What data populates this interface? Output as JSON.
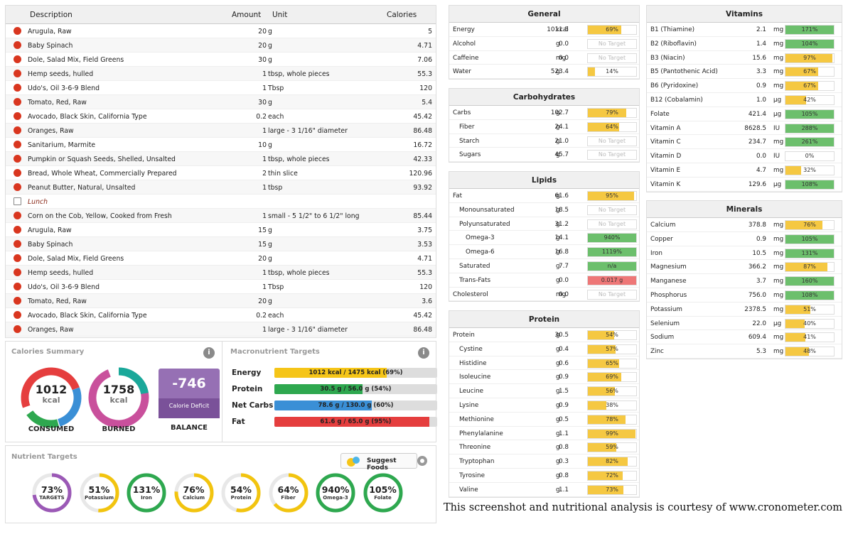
{
  "colors": {
    "yellow": "#f5c842",
    "green": "#6cbf6c",
    "red": "#ee7777",
    "purple": "#9670b4"
  },
  "diary": {
    "headers": {
      "desc": "Description",
      "amount": "Amount",
      "unit": "Unit",
      "calories": "Calories"
    },
    "rows": [
      {
        "icon": "apple-icon",
        "desc": "Arugula, Raw",
        "amount": "20",
        "unit": "g",
        "cal": "5"
      },
      {
        "icon": "apple-icon",
        "desc": "Baby Spinach",
        "amount": "20",
        "unit": "g",
        "cal": "4.71"
      },
      {
        "icon": "apple-icon",
        "desc": "Dole, Salad Mix, Field Greens",
        "amount": "30",
        "unit": "g",
        "cal": "7.06"
      },
      {
        "icon": "apple-icon",
        "desc": "Hemp seeds, hulled",
        "amount": "1",
        "unit": "tbsp, whole pieces",
        "cal": "55.3"
      },
      {
        "icon": "apple-icon",
        "desc": "Udo's, Oil 3-6-9 Blend",
        "amount": "1",
        "unit": "Tbsp",
        "cal": "120"
      },
      {
        "icon": "apple-icon",
        "desc": "Tomato, Red, Raw",
        "amount": "30",
        "unit": "g",
        "cal": "5.4"
      },
      {
        "icon": "apple-icon",
        "desc": "Avocado, Black Skin, California Type",
        "amount": "0.2",
        "unit": "each",
        "cal": "45.42"
      },
      {
        "icon": "apple-icon",
        "desc": "Oranges, Raw",
        "amount": "1",
        "unit": "large - 3 1/16\" diameter",
        "cal": "86.48"
      },
      {
        "icon": "apple-icon",
        "desc": "Sanitarium, Marmite",
        "amount": "10",
        "unit": "g",
        "cal": "16.72"
      },
      {
        "icon": "apple-icon",
        "desc": "Pumpkin or Squash Seeds, Shelled, Unsalted",
        "amount": "1",
        "unit": "tbsp, whole pieces",
        "cal": "42.33"
      },
      {
        "icon": "apple-icon",
        "desc": "Bread, Whole Wheat, Commercially Prepared",
        "amount": "2",
        "unit": "thin slice",
        "cal": "120.96"
      },
      {
        "icon": "apple-icon",
        "desc": "Peanut Butter, Natural, Unsalted",
        "amount": "1",
        "unit": "tbsp",
        "cal": "93.92"
      },
      {
        "icon": "note-icon",
        "desc": "Lunch",
        "amount": "",
        "unit": "",
        "cal": "",
        "note": true
      },
      {
        "icon": "apple-icon",
        "desc": "Corn on the Cob, Yellow, Cooked from Fresh",
        "amount": "1",
        "unit": "small - 5 1/2\" to 6 1/2\" long",
        "cal": "85.44"
      },
      {
        "icon": "apple-icon",
        "desc": "Arugula, Raw",
        "amount": "15",
        "unit": "g",
        "cal": "3.75"
      },
      {
        "icon": "apple-icon",
        "desc": "Baby Spinach",
        "amount": "15",
        "unit": "g",
        "cal": "3.53"
      },
      {
        "icon": "apple-icon",
        "desc": "Dole, Salad Mix, Field Greens",
        "amount": "20",
        "unit": "g",
        "cal": "4.71"
      },
      {
        "icon": "apple-icon",
        "desc": "Hemp seeds, hulled",
        "amount": "1",
        "unit": "tbsp, whole pieces",
        "cal": "55.3"
      },
      {
        "icon": "apple-icon",
        "desc": "Udo's, Oil 3-6-9 Blend",
        "amount": "1",
        "unit": "Tbsp",
        "cal": "120"
      },
      {
        "icon": "apple-icon",
        "desc": "Tomato, Red, Raw",
        "amount": "20",
        "unit": "g",
        "cal": "3.6"
      },
      {
        "icon": "apple-icon",
        "desc": "Avocado, Black Skin, California Type",
        "amount": "0.2",
        "unit": "each",
        "cal": "45.42"
      },
      {
        "icon": "apple-icon",
        "desc": "Oranges, Raw",
        "amount": "1",
        "unit": "large - 3 1/16\" diameter",
        "cal": "86.48"
      }
    ]
  },
  "calories_summary": {
    "title": "Calories Summary",
    "info": "i",
    "consumed": {
      "value": "1012",
      "unit": "kcal",
      "label": "CONSUMED"
    },
    "burned": {
      "value": "1758",
      "unit": "kcal",
      "label": "BURNED"
    },
    "balance": {
      "value": "-746",
      "sub": "Calorie Deficit",
      "label": "BALANCE"
    }
  },
  "macro_targets": {
    "title": "Macronutrient Targets",
    "info": "i",
    "rows": [
      {
        "name": "Energy",
        "text": "1012 kcal / 1475 kcal (69%)",
        "pct": 69,
        "color": "#f5c518"
      },
      {
        "name": "Protein",
        "text": "30.5 g / 56.0 g (54%)",
        "pct": 54,
        "color": "#2ea84f"
      },
      {
        "name": "Net Carbs",
        "text": "78.6 g / 130.0 g (60%)",
        "pct": 60,
        "color": "#3a8fd6"
      },
      {
        "name": "Fat",
        "text": "61.6 g / 65.0 g (95%)",
        "pct": 95,
        "color": "#e53e3e"
      }
    ]
  },
  "nutrient_targets": {
    "title": "Nutrient Targets",
    "suggest": "Suggest Foods",
    "circles": [
      {
        "pct": "73%",
        "label": "TARGETS",
        "frac": 0.73,
        "color": "#9b59b6"
      },
      {
        "pct": "51%",
        "label": "Potassium",
        "frac": 0.51,
        "color": "#f2c40f"
      },
      {
        "pct": "131%",
        "label": "Iron",
        "frac": 1,
        "color": "#2ea84f"
      },
      {
        "pct": "76%",
        "label": "Calcium",
        "frac": 0.76,
        "color": "#f2c40f"
      },
      {
        "pct": "54%",
        "label": "Protein",
        "frac": 0.54,
        "color": "#f2c40f"
      },
      {
        "pct": "64%",
        "label": "Fiber",
        "frac": 0.64,
        "color": "#f2c40f"
      },
      {
        "pct": "940%",
        "label": "Omega-3",
        "frac": 1,
        "color": "#2ea84f"
      },
      {
        "pct": "105%",
        "label": "Folate",
        "frac": 1,
        "color": "#2ea84f"
      }
    ]
  },
  "panels": {
    "general": {
      "title": "General",
      "rows": [
        {
          "name": "Energy",
          "amt": "1011.5",
          "unit": "kcal",
          "pct": "69%",
          "frac": 0.69,
          "c": "y"
        },
        {
          "name": "Alcohol",
          "amt": "0.0",
          "unit": "g",
          "pct": "No Target",
          "frac": 0,
          "c": "n"
        },
        {
          "name": "Caffeine",
          "amt": "0.0",
          "unit": "mg",
          "pct": "No Target",
          "frac": 0,
          "c": "n"
        },
        {
          "name": "Water",
          "amt": "523.4",
          "unit": "g",
          "pct": "14%",
          "frac": 0.14,
          "c": "y"
        }
      ]
    },
    "carbs": {
      "title": "Carbohydrates",
      "rows": [
        {
          "name": "Carbs",
          "amt": "102.7",
          "unit": "g",
          "pct": "79%",
          "frac": 0.79,
          "c": "y"
        },
        {
          "name": "Fiber",
          "amt": "24.1",
          "unit": "g",
          "pct": "64%",
          "frac": 0.64,
          "c": "y",
          "ind": 1
        },
        {
          "name": "Starch",
          "amt": "21.0",
          "unit": "g",
          "pct": "No Target",
          "frac": 0,
          "c": "n",
          "ind": 1
        },
        {
          "name": "Sugars",
          "amt": "45.7",
          "unit": "g",
          "pct": "No Target",
          "frac": 0,
          "c": "n",
          "ind": 1
        }
      ]
    },
    "lipids": {
      "title": "Lipids",
      "rows": [
        {
          "name": "Fat",
          "amt": "61.6",
          "unit": "g",
          "pct": "95%",
          "frac": 0.95,
          "c": "y"
        },
        {
          "name": "Monounsaturated",
          "amt": "18.5",
          "unit": "g",
          "pct": "No Target",
          "frac": 0,
          "c": "n",
          "ind": 1
        },
        {
          "name": "Polyunsaturated",
          "amt": "31.2",
          "unit": "g",
          "pct": "No Target",
          "frac": 0,
          "c": "n",
          "ind": 1
        },
        {
          "name": "Omega-3",
          "amt": "14.1",
          "unit": "g",
          "pct": "940%",
          "frac": 1,
          "c": "g",
          "ind": 2
        },
        {
          "name": "Omega-6",
          "amt": "16.8",
          "unit": "g",
          "pct": "1119%",
          "frac": 1,
          "c": "g",
          "ind": 2
        },
        {
          "name": "Saturated",
          "amt": "7.7",
          "unit": "g",
          "pct": "n/a",
          "frac": 1,
          "c": "g",
          "ind": 1
        },
        {
          "name": "Trans-Fats",
          "amt": "0.0",
          "unit": "g",
          "pct": "0.017 g",
          "frac": 1,
          "c": "r",
          "ind": 1
        },
        {
          "name": "Cholesterol",
          "amt": "0.0",
          "unit": "mg",
          "pct": "No Target",
          "frac": 0,
          "c": "n"
        }
      ]
    },
    "protein": {
      "title": "Protein",
      "rows": [
        {
          "name": "Protein",
          "amt": "30.5",
          "unit": "g",
          "pct": "54%",
          "frac": 0.54,
          "c": "y"
        },
        {
          "name": "Cystine",
          "amt": "0.4",
          "unit": "g",
          "pct": "57%",
          "frac": 0.57,
          "c": "y",
          "ind": 1
        },
        {
          "name": "Histidine",
          "amt": "0.6",
          "unit": "g",
          "pct": "65%",
          "frac": 0.65,
          "c": "y",
          "ind": 1
        },
        {
          "name": "Isoleucine",
          "amt": "0.9",
          "unit": "g",
          "pct": "69%",
          "frac": 0.69,
          "c": "y",
          "ind": 1
        },
        {
          "name": "Leucine",
          "amt": "1.5",
          "unit": "g",
          "pct": "56%",
          "frac": 0.56,
          "c": "y",
          "ind": 1
        },
        {
          "name": "Lysine",
          "amt": "0.9",
          "unit": "g",
          "pct": "38%",
          "frac": 0.38,
          "c": "y",
          "ind": 1
        },
        {
          "name": "Methionine",
          "amt": "0.5",
          "unit": "g",
          "pct": "78%",
          "frac": 0.78,
          "c": "y",
          "ind": 1
        },
        {
          "name": "Phenylalanine",
          "amt": "1.1",
          "unit": "g",
          "pct": "99%",
          "frac": 0.99,
          "c": "y",
          "ind": 1
        },
        {
          "name": "Threonine",
          "amt": "0.8",
          "unit": "g",
          "pct": "59%",
          "frac": 0.59,
          "c": "y",
          "ind": 1
        },
        {
          "name": "Tryptophan",
          "amt": "0.3",
          "unit": "g",
          "pct": "82%",
          "frac": 0.82,
          "c": "y",
          "ind": 1
        },
        {
          "name": "Tyrosine",
          "amt": "0.8",
          "unit": "g",
          "pct": "72%",
          "frac": 0.72,
          "c": "y",
          "ind": 1
        },
        {
          "name": "Valine",
          "amt": "1.1",
          "unit": "g",
          "pct": "73%",
          "frac": 0.73,
          "c": "y",
          "ind": 1
        }
      ]
    },
    "vitamins": {
      "title": "Vitamins",
      "rows": [
        {
          "name": "B1 (Thiamine)",
          "amt": "2.1",
          "unit": "mg",
          "pct": "171%",
          "frac": 1,
          "c": "g"
        },
        {
          "name": "B2 (Riboflavin)",
          "amt": "1.4",
          "unit": "mg",
          "pct": "104%",
          "frac": 1,
          "c": "g"
        },
        {
          "name": "B3 (Niacin)",
          "amt": "15.6",
          "unit": "mg",
          "pct": "97%",
          "frac": 0.97,
          "c": "y"
        },
        {
          "name": "B5 (Pantothenic Acid)",
          "amt": "3.3",
          "unit": "mg",
          "pct": "67%",
          "frac": 0.67,
          "c": "y"
        },
        {
          "name": "B6 (Pyridoxine)",
          "amt": "0.9",
          "unit": "mg",
          "pct": "67%",
          "frac": 0.67,
          "c": "y"
        },
        {
          "name": "B12 (Cobalamin)",
          "amt": "1.0",
          "unit": "µg",
          "pct": "42%",
          "frac": 0.42,
          "c": "y"
        },
        {
          "name": "Folate",
          "amt": "421.4",
          "unit": "µg",
          "pct": "105%",
          "frac": 1,
          "c": "g"
        },
        {
          "name": "Vitamin A",
          "amt": "8628.5",
          "unit": "IU",
          "pct": "288%",
          "frac": 1,
          "c": "g"
        },
        {
          "name": "Vitamin C",
          "amt": "234.7",
          "unit": "mg",
          "pct": "261%",
          "frac": 1,
          "c": "g"
        },
        {
          "name": "Vitamin D",
          "amt": "0.0",
          "unit": "IU",
          "pct": "0%",
          "frac": 0,
          "c": "y"
        },
        {
          "name": "Vitamin E",
          "amt": "4.7",
          "unit": "mg",
          "pct": "32%",
          "frac": 0.32,
          "c": "y"
        },
        {
          "name": "Vitamin K",
          "amt": "129.6",
          "unit": "µg",
          "pct": "108%",
          "frac": 1,
          "c": "g"
        }
      ]
    },
    "minerals": {
      "title": "Minerals",
      "rows": [
        {
          "name": "Calcium",
          "amt": "378.8",
          "unit": "mg",
          "pct": "76%",
          "frac": 0.76,
          "c": "y"
        },
        {
          "name": "Copper",
          "amt": "0.9",
          "unit": "mg",
          "pct": "105%",
          "frac": 1,
          "c": "g"
        },
        {
          "name": "Iron",
          "amt": "10.5",
          "unit": "mg",
          "pct": "131%",
          "frac": 1,
          "c": "g"
        },
        {
          "name": "Magnesium",
          "amt": "366.2",
          "unit": "mg",
          "pct": "87%",
          "frac": 0.87,
          "c": "y"
        },
        {
          "name": "Manganese",
          "amt": "3.7",
          "unit": "mg",
          "pct": "160%",
          "frac": 1,
          "c": "g"
        },
        {
          "name": "Phosphorus",
          "amt": "756.0",
          "unit": "mg",
          "pct": "108%",
          "frac": 1,
          "c": "g"
        },
        {
          "name": "Potassium",
          "amt": "2378.5",
          "unit": "mg",
          "pct": "51%",
          "frac": 0.51,
          "c": "y"
        },
        {
          "name": "Selenium",
          "amt": "22.0",
          "unit": "µg",
          "pct": "40%",
          "frac": 0.4,
          "c": "y"
        },
        {
          "name": "Sodium",
          "amt": "609.4",
          "unit": "mg",
          "pct": "41%",
          "frac": 0.41,
          "c": "y"
        },
        {
          "name": "Zinc",
          "amt": "5.3",
          "unit": "mg",
          "pct": "48%",
          "frac": 0.48,
          "c": "y"
        }
      ]
    }
  },
  "credit": "This screenshot and nutritional analysis is courtesy of www.cronometer.com"
}
